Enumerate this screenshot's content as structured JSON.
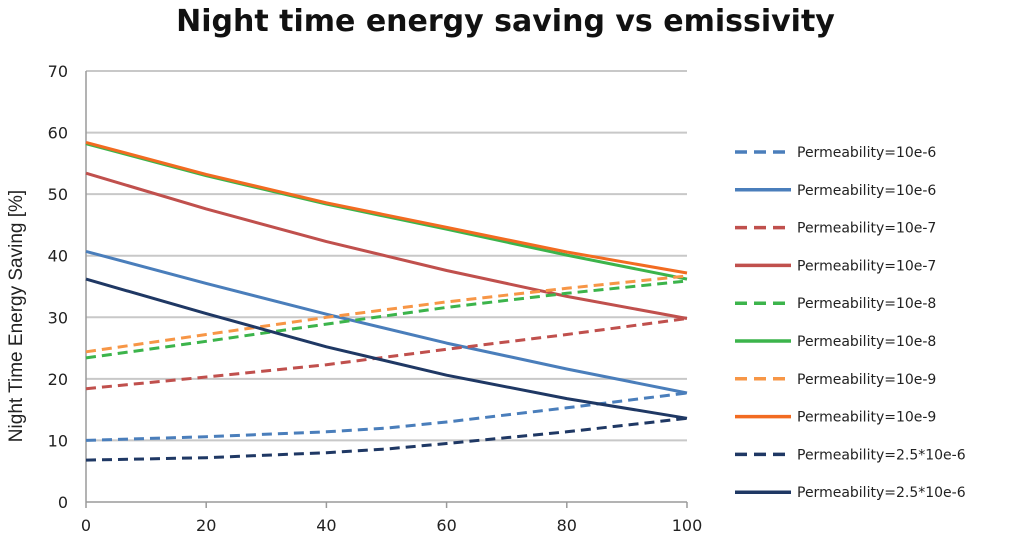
{
  "chart_data": {
    "type": "line",
    "title": "Night time energy saving vs emissivity",
    "xlabel": "",
    "ylabel": "Night Time Energy Saving [%]",
    "xlim": [
      0,
      100
    ],
    "ylim": [
      0,
      70
    ],
    "x_ticks": [
      "0",
      "20",
      "40",
      "60",
      "80",
      "100"
    ],
    "y_ticks": [
      "0",
      "10",
      "20",
      "30",
      "40",
      "50",
      "60",
      "70"
    ],
    "grid": "horizontal",
    "legend_position": "right",
    "series": [
      {
        "name": "Permeability=10e-6",
        "color": "#4a7ebb",
        "dash": true,
        "points": [
          [
            0,
            10
          ],
          [
            20,
            10.6
          ],
          [
            40,
            11.4
          ],
          [
            50,
            12
          ],
          [
            60,
            13
          ],
          [
            80,
            15.3
          ],
          [
            100,
            17.7
          ]
        ]
      },
      {
        "name": "Permeability=10e-6",
        "color": "#4a7ebb",
        "dash": false,
        "points": [
          [
            0,
            40.7
          ],
          [
            20,
            35.5
          ],
          [
            40,
            30.5
          ],
          [
            60,
            25.8
          ],
          [
            80,
            21.6
          ],
          [
            100,
            17.7
          ]
        ]
      },
      {
        "name": "Permeability=10e-7",
        "color": "#c0504d",
        "dash": true,
        "points": [
          [
            0,
            18.4
          ],
          [
            20,
            20.3
          ],
          [
            40,
            22.3
          ],
          [
            60,
            24.8
          ],
          [
            80,
            27.2
          ],
          [
            100,
            29.8
          ]
        ]
      },
      {
        "name": "Permeability=10e-7",
        "color": "#c0504d",
        "dash": false,
        "points": [
          [
            0,
            53.4
          ],
          [
            20,
            47.6
          ],
          [
            40,
            42.3
          ],
          [
            60,
            37.6
          ],
          [
            80,
            33.4
          ],
          [
            100,
            29.8
          ]
        ]
      },
      {
        "name": "Permeability=10e-8",
        "color": "#3cb44b",
        "dash": true,
        "points": [
          [
            0,
            23.4
          ],
          [
            20,
            26.1
          ],
          [
            40,
            28.9
          ],
          [
            60,
            31.6
          ],
          [
            80,
            33.9
          ],
          [
            100,
            35.9
          ]
        ]
      },
      {
        "name": "Permeability=10e-8",
        "color": "#3cb44b",
        "dash": false,
        "points": [
          [
            0,
            58.2
          ],
          [
            20,
            53.0
          ],
          [
            40,
            48.4
          ],
          [
            60,
            44.3
          ],
          [
            80,
            40.1
          ],
          [
            100,
            36.2
          ]
        ]
      },
      {
        "name": "Permeability=10e-9",
        "color": "#f79646",
        "dash": true,
        "points": [
          [
            0,
            24.4
          ],
          [
            20,
            27.2
          ],
          [
            40,
            30.0
          ],
          [
            60,
            32.5
          ],
          [
            80,
            34.7
          ],
          [
            100,
            36.7
          ]
        ]
      },
      {
        "name": "Permeability=10e-9",
        "color": "#f26b21",
        "dash": false,
        "points": [
          [
            0,
            58.4
          ],
          [
            20,
            53.2
          ],
          [
            40,
            48.6
          ],
          [
            60,
            44.6
          ],
          [
            80,
            40.6
          ],
          [
            100,
            37.2
          ]
        ]
      },
      {
        "name": "Permeability=2.5*10e-6",
        "color": "#1f3864",
        "dash": true,
        "points": [
          [
            0,
            6.8
          ],
          [
            20,
            7.2
          ],
          [
            40,
            8.0
          ],
          [
            50,
            8.6
          ],
          [
            60,
            9.5
          ],
          [
            80,
            11.4
          ],
          [
            100,
            13.6
          ]
        ]
      },
      {
        "name": "Permeability=2.5*10e-6",
        "color": "#1f3864",
        "dash": false,
        "points": [
          [
            0,
            36.2
          ],
          [
            20,
            30.6
          ],
          [
            40,
            25.2
          ],
          [
            60,
            20.6
          ],
          [
            80,
            16.8
          ],
          [
            100,
            13.6
          ]
        ]
      }
    ]
  }
}
